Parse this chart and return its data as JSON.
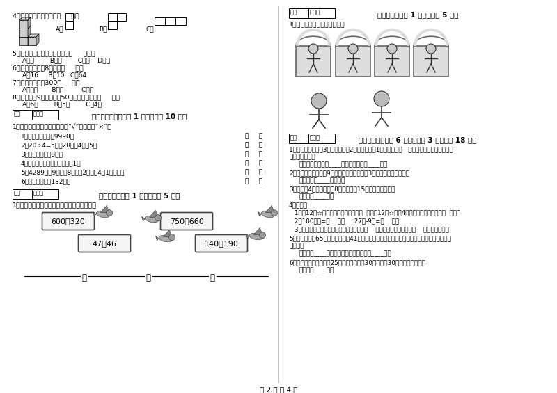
{
  "bg_color": "#ffffff",
  "text_color": "#000000",
  "page_num": "第 2 页 共 4 页",
  "left_column": {
    "q4_title": "4．从正面看到的图形是（     ）。",
    "q5": "5．一个四位数，它的最高位是（     ）位。",
    "q5_opts": "A、千        B、百        C、十    D、个",
    "q6": "6．两个乘数都是8，积是（     ）。",
    "q6_opts": "A、16     B、10   C、64",
    "q7": "7．一棵树的高度300（     ）。",
    "q7_opts": "A、厘米       B、克         C、米",
    "q8": "8．个文具盒9元錢，平平50元錢，最多能买（     ）。",
    "q8_opts": "A、6个        B、5个        C、4个",
    "sec5_header": "五、判断对与错（共 1 大题，共计 10 分）",
    "sec5_intro": "1．我会判断，对的在括号里打“√”，错的打“×”。",
    "sec5_items": [
      "1．最大的四位数是9990。",
      "2．20÷4=5读作20除以4等于5。",
      "3．课桌的高度是8米。",
      "4．两个同样大的数相除，商是1。",
      "5．4289是由9个千，8个百，2个十和4个1组成的。",
      "6．小红的身高是132米。"
    ],
    "sec6_header": "六、比一比（共 1 大题，共计 5 分）",
    "sec6_intro": "1．把下列算式按得数大小，从小到大排一行。",
    "expr1": "600－320",
    "expr2": "750－660",
    "expr3": "47＋46",
    "expr4": "140＋190"
  },
  "right_column": {
    "sec7_header": "七、连一连（共 1 大题，共计 5 分）",
    "sec7_intro": "1．连一连镜子里看到的图像。",
    "sec8_header": "八、解决问题（共 6 小题，每题 3 分，共计 18 分）",
    "sec8_q1a": "1．爸爸在商店买了3千克的水果、2千克的面粉和1千克的鸡蛋。   爸爸一共买了多少千克的东",
    "sec8_q1b": "西？合多少克？",
    "sec8_q1_ans": "答：爸爸一共买了____千克的东西，合____克。",
    "sec8_q2": "2．有两群猴子，每群9只，现把它们平均分成3组，每组有几只猴子？",
    "sec8_q2_ans": "答：每组有____只猴子。",
    "sec8_q3": "3．婬婬买4盒彩笔，每盒8支，用去了15支，还剩多少支？",
    "sec8_q3_ans": "答：还剩____支。",
    "sec8_q4_title": "4．填空。",
    "sec8_q4_1": "1．把12个☆平均分成３份，每份是（  ）个；12个☆，每4个分成一份，可以分成（  ）份。",
    "sec8_q4_2": "2．100厘米=（    ）米     27米-9米=（    ）米",
    "sec8_q4_3": "3．画一条３厘米长的线段，一般应从尺的（    ）刻度开始描起，画到（    ）厘米的地方。",
    "sec8_q5a": "5．停车场上有65辆小汽车，开走41辆，还剩下多少辆？又开来苦辆，现在停车场上有小汽车",
    "sec8_q5b": "多少辆？",
    "sec8_q5_ans": "答：还剩____辆，现在停车场上有小汽车____辆。",
    "sec8_q6": "6．粮店第一次运进面粖25袋，第二次运进30袋，卖出30袋，还剩多少袋？",
    "sec8_q6_ans": "答：还剩____袋。"
  }
}
